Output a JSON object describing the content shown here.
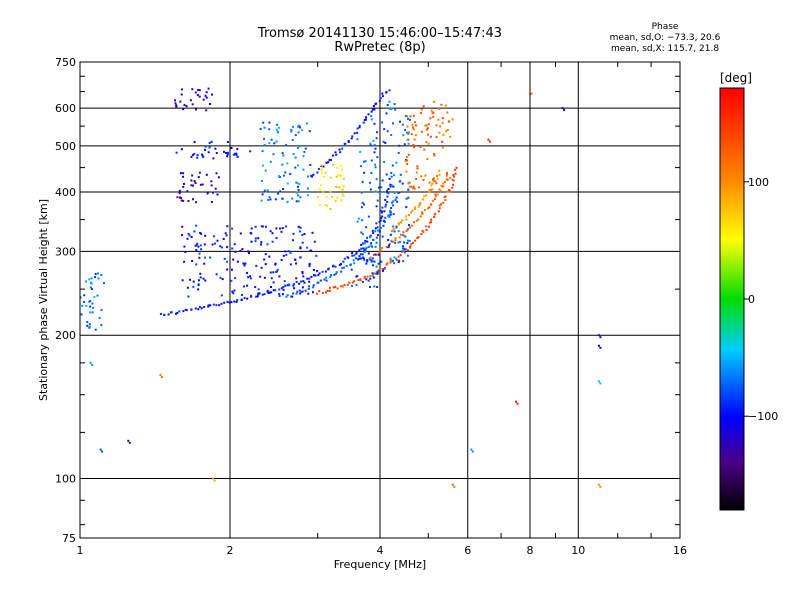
{
  "header": {
    "title_line1": "Tromsø 20141130 15:46:00–15:47:43",
    "title_line2": "RwPretec (8p)"
  },
  "phase_stats": {
    "heading": "Phase",
    "o_mode": "mean, sd,O: −73.3, 20.6",
    "x_mode": "mean, sd,X: 115.7, 21.8"
  },
  "colorbar": {
    "label": "[deg]",
    "ticks": [
      {
        "value": 100,
        "label": "100"
      },
      {
        "value": 0,
        "label": "0"
      },
      {
        "value": -100,
        "label": "−100"
      }
    ],
    "range": [
      -180,
      180
    ]
  },
  "chart_data": {
    "type": "scatter",
    "xlabel": "Frequency [MHz]",
    "ylabel": "Stationary phase Virtual Height [km]",
    "x_scale": "log",
    "y_scale": "log",
    "xlim": [
      1,
      16
    ],
    "ylim": [
      75,
      750
    ],
    "x_ticks": [
      {
        "value": 1,
        "label": "1"
      },
      {
        "value": 2,
        "label": "2"
      },
      {
        "value": 4,
        "label": "4"
      },
      {
        "value": 6,
        "label": "6"
      },
      {
        "value": 8,
        "label": "8"
      },
      {
        "value": 10,
        "label": "10"
      },
      {
        "value": 16,
        "label": "16"
      }
    ],
    "y_ticks": [
      {
        "value": 75,
        "label": "75"
      },
      {
        "value": 100,
        "label": "100"
      },
      {
        "value": 200,
        "label": "200"
      },
      {
        "value": 300,
        "label": "300"
      },
      {
        "value": 400,
        "label": "400"
      },
      {
        "value": 500,
        "label": "500"
      },
      {
        "value": 600,
        "label": "600"
      },
      {
        "value": 750,
        "label": "750"
      }
    ],
    "x_grid": [
      1,
      2,
      4,
      6,
      8,
      10,
      16
    ],
    "y_grid": [
      75,
      100,
      200,
      300,
      400,
      500,
      600,
      750
    ],
    "traces": [
      {
        "mode": "O",
        "phase": -95,
        "x": [
          1.45,
          1.55,
          1.7,
          1.9,
          2.1,
          2.4,
          2.7,
          3.0,
          3.3,
          3.6,
          3.85,
          4.05,
          4.2
        ],
        "y": [
          221,
          223,
          227,
          232,
          238,
          246,
          256,
          268,
          282,
          300,
          325,
          360,
          420
        ]
      },
      {
        "mode": "O",
        "phase": -75,
        "x": [
          2.6,
          2.9,
          3.2,
          3.5,
          3.75,
          3.95,
          4.15,
          4.35
        ],
        "y": [
          240,
          252,
          266,
          283,
          302,
          325,
          355,
          400
        ]
      },
      {
        "mode": "O",
        "phase": -100,
        "x": [
          2.9,
          3.2,
          3.5,
          3.8,
          4.0,
          4.2
        ],
        "y": [
          430,
          470,
          520,
          580,
          630,
          660
        ]
      },
      {
        "mode": "X",
        "phase": 140,
        "x": [
          3.0,
          3.3,
          3.6,
          3.9,
          4.2,
          4.5,
          4.8,
          5.1,
          5.4,
          5.6,
          5.7
        ],
        "y": [
          245,
          252,
          260,
          270,
          283,
          300,
          322,
          350,
          385,
          420,
          455
        ]
      },
      {
        "mode": "X",
        "phase": 120,
        "x": [
          3.8,
          4.1,
          4.4,
          4.7,
          5.0,
          5.3,
          5.5
        ],
        "y": [
          290,
          305,
          323,
          345,
          372,
          405,
          440
        ]
      },
      {
        "mode": "X",
        "phase": 95,
        "x": [
          4.2,
          4.5,
          4.8,
          5.1,
          5.3
        ],
        "y": [
          330,
          352,
          378,
          410,
          445
        ]
      }
    ],
    "clusters": [
      {
        "mode": "O",
        "x_range": [
          1.55,
          1.85
        ],
        "y_range": [
          590,
          660
        ],
        "phase": -115
      },
      {
        "mode": "O",
        "x_range": [
          1.55,
          1.9
        ],
        "y_range": [
          380,
          440
        ],
        "phase": -120
      },
      {
        "mode": "O",
        "x_range": [
          1.55,
          2.2
        ],
        "y_range": [
          470,
          510
        ],
        "phase": -100
      },
      {
        "mode": "O",
        "x_range": [
          1.6,
          3.0
        ],
        "y_range": [
          240,
          340
        ],
        "phase": -95
      },
      {
        "mode": "O",
        "x_range": [
          2.3,
          2.9
        ],
        "y_range": [
          380,
          560
        ],
        "phase": -70
      },
      {
        "mode": "O",
        "x_range": [
          3.6,
          4.6
        ],
        "y_range": [
          280,
          620
        ],
        "phase": -75
      },
      {
        "mode": "O",
        "x_range": [
          1.0,
          1.12
        ],
        "y_range": [
          205,
          270
        ],
        "phase": -70
      },
      {
        "mode": "O",
        "x_range": [
          3.5,
          4.1
        ],
        "y_range": [
          250,
          300
        ],
        "phase": -85
      },
      {
        "mode": "X",
        "x_range": [
          4.5,
          5.6
        ],
        "y_range": [
          400,
          620
        ],
        "phase": 120
      },
      {
        "mode": "X",
        "x_range": [
          3.0,
          3.4
        ],
        "y_range": [
          360,
          460
        ],
        "phase": 60
      }
    ],
    "isolated_points": [
      {
        "x": 1.05,
        "y": 175,
        "phase": -60
      },
      {
        "x": 1.1,
        "y": 115,
        "phase": -80
      },
      {
        "x": 1.25,
        "y": 120,
        "phase": -150
      },
      {
        "x": 1.45,
        "y": 165,
        "phase": 110
      },
      {
        "x": 1.85,
        "y": 100,
        "phase": 90
      },
      {
        "x": 5.6,
        "y": 97,
        "phase": 120
      },
      {
        "x": 7.5,
        "y": 145,
        "phase": 170
      },
      {
        "x": 11.0,
        "y": 200,
        "phase": -110
      },
      {
        "x": 11.0,
        "y": 190,
        "phase": -100
      },
      {
        "x": 11.0,
        "y": 160,
        "phase": -50
      },
      {
        "x": 11.0,
        "y": 97,
        "phase": 100
      },
      {
        "x": 6.6,
        "y": 515,
        "phase": 160
      },
      {
        "x": 8.0,
        "y": 650,
        "phase": 120
      },
      {
        "x": 9.3,
        "y": 600,
        "phase": -110
      },
      {
        "x": 6.1,
        "y": 115,
        "phase": -60
      }
    ]
  }
}
